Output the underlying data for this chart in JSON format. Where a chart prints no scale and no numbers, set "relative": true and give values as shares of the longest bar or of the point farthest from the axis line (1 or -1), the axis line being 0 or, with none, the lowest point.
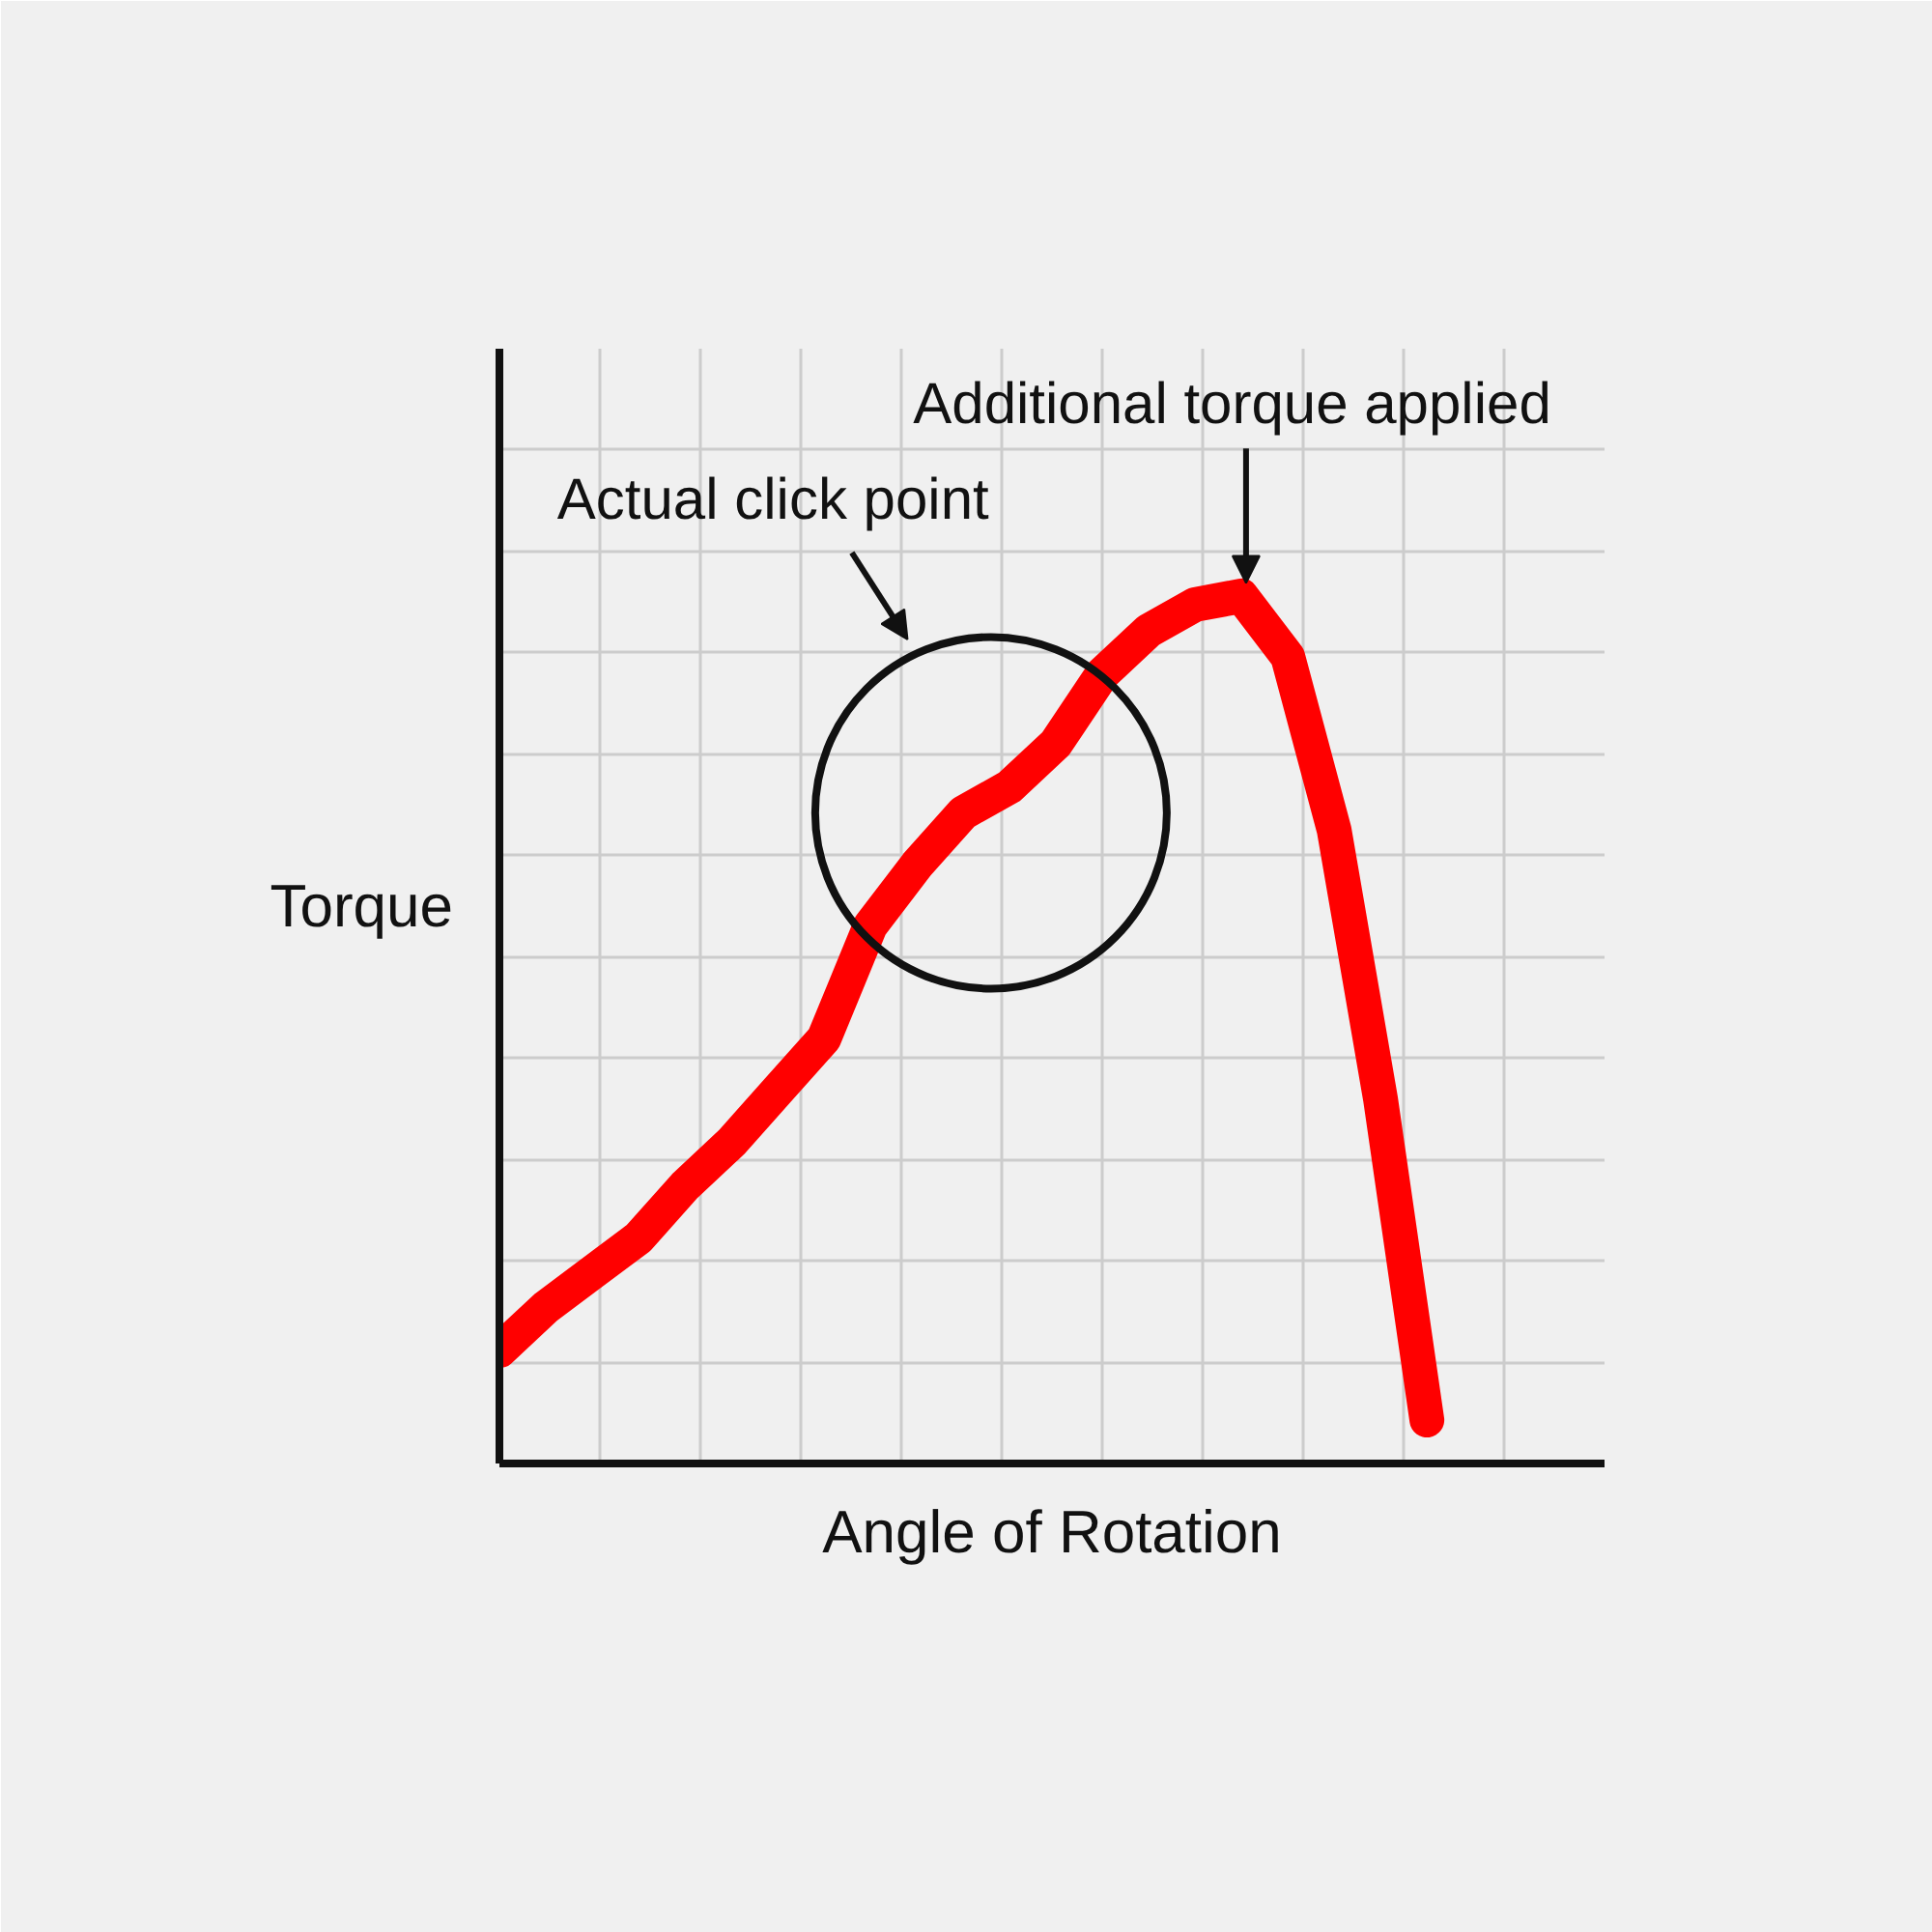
{
  "chart_data": {
    "type": "line",
    "relative": true,
    "xlabel": "Angle of Rotation",
    "ylabel": "Torque",
    "categories": [
      null,
      null,
      null,
      null,
      null,
      null,
      null,
      null,
      null,
      null,
      null,
      null,
      null,
      null,
      null,
      null,
      null,
      null,
      null,
      null,
      null
    ],
    "series": [
      {
        "color": "#ff0000",
        "values": [
          0.13,
          0.18,
          0.22,
          0.26,
          0.32,
          0.37,
          0.43,
          0.49,
          0.62,
          0.69,
          0.75,
          0.78,
          0.83,
          0.91,
          0.96,
          0.99,
          1.0,
          0.93,
          0.73,
          0.42,
          0.05
        ]
      }
    ],
    "annotations": [
      "Actual click point",
      "Additional torque applied"
    ],
    "grid": true,
    "line_style": "solid"
  }
}
